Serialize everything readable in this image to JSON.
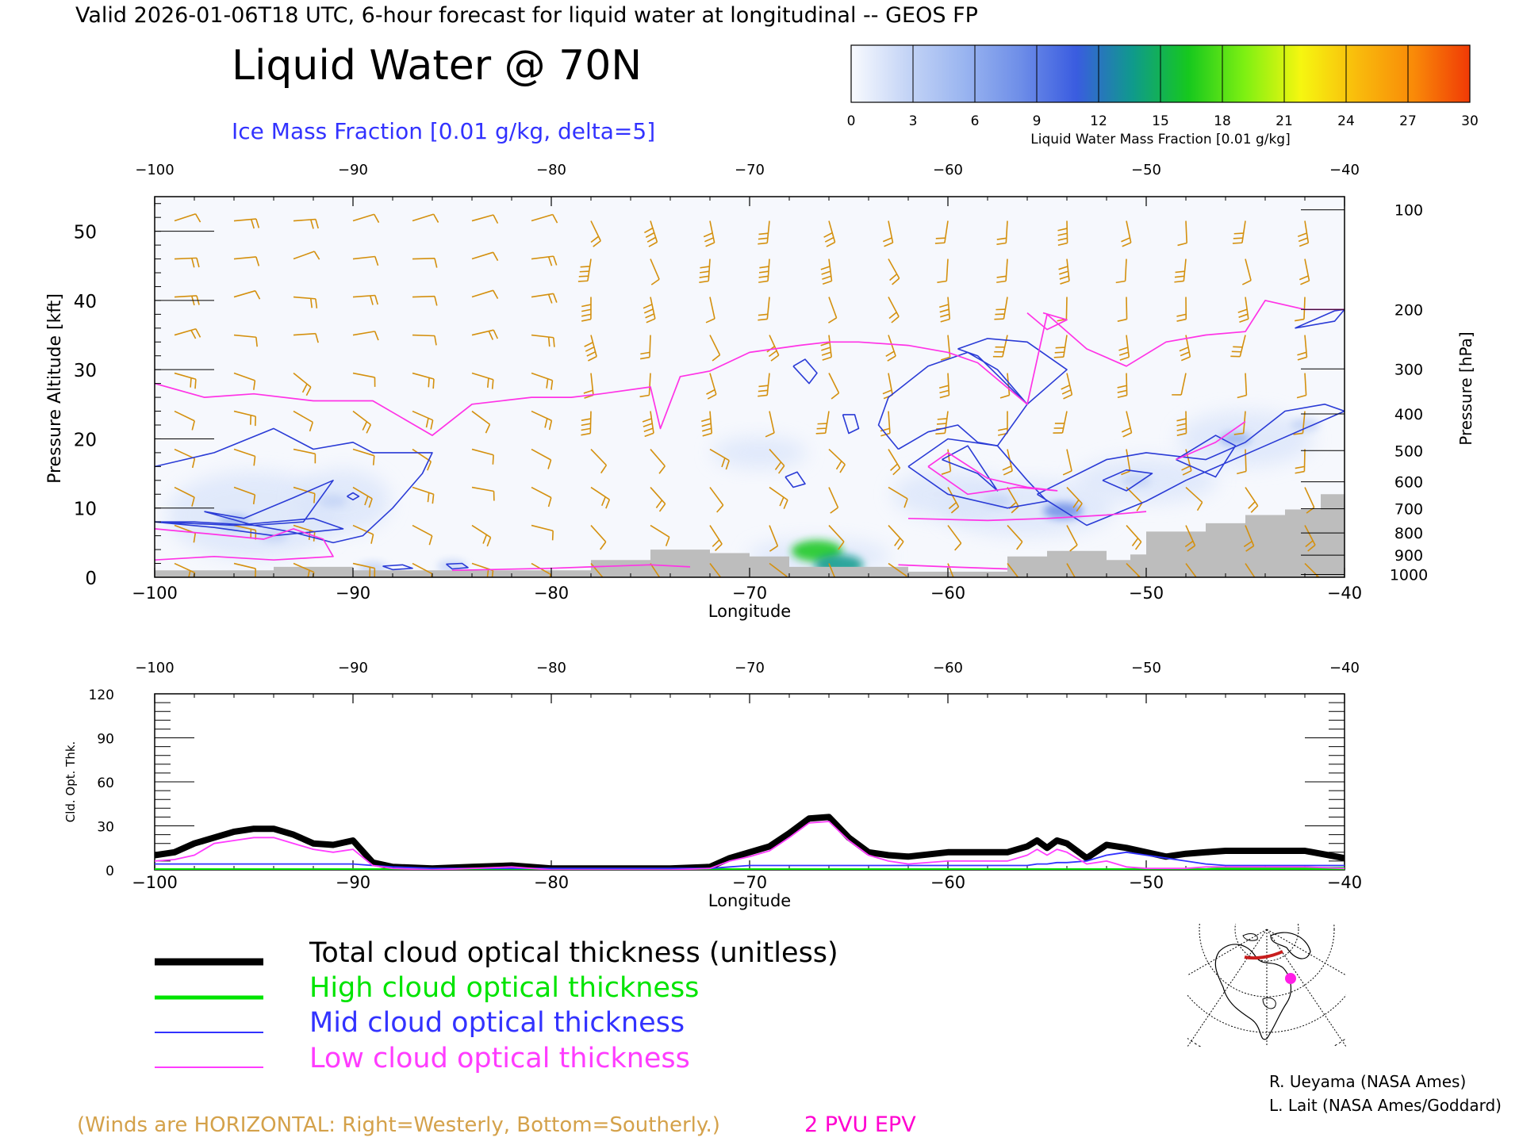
{
  "header": {
    "valid_line": "Valid 2026-01-06T18 UTC, 6-hour forecast for liquid water at longitudinal -- GEOS FP",
    "title": "Liquid Water @ 70N",
    "ice_label": "Ice Mass Fraction [0.01 g/kg, delta=5]"
  },
  "colorbar": {
    "label": "Liquid Water Mass Fraction [0.01 g/kg]",
    "ticks": [
      "0",
      "3",
      "6",
      "9",
      "12",
      "15",
      "18",
      "21",
      "24",
      "27",
      "30"
    ],
    "colors": [
      "#f8fafe",
      "#c4d4f6",
      "#9ab5f0",
      "#6e8ee8",
      "#3a5ce0",
      "#0f9a8c",
      "#16c81e",
      "#7ef012",
      "#f6f610",
      "#f9bb0c",
      "#f98a08",
      "#f03a06"
    ]
  },
  "chart_data": [
    {
      "type": "heatmap",
      "title": "Liquid Water @ 70N",
      "xlabel": "Longitude",
      "ylabel": "Pressure Altitude [kft]",
      "y2label": "Pressure [hPa]",
      "xlim": [
        -100,
        -40
      ],
      "ylim": [
        0,
        55
      ],
      "x_ticks": [
        "−100",
        "−90",
        "−80",
        "−70",
        "−60",
        "−50",
        "−40"
      ],
      "x_tick_values": [
        -100,
        -90,
        -80,
        -70,
        -60,
        -50,
        -40
      ],
      "y_ticks": [
        "0",
        "10",
        "20",
        "30",
        "40",
        "50"
      ],
      "y_tick_values": [
        0,
        10,
        20,
        30,
        40,
        50
      ],
      "pressure_ticks": [
        "100",
        "200",
        "300",
        "400",
        "500",
        "600",
        "700",
        "800",
        "900",
        "1000"
      ],
      "pressure_tick_kft": [
        53.1,
        38.7,
        30.1,
        23.6,
        18.3,
        13.8,
        9.9,
        6.4,
        3.2,
        0.4
      ],
      "terrain": {
        "x": [
          -100,
          -94,
          -94,
          -90,
          -90,
          -78,
          -78,
          -75,
          -75,
          -72,
          -72,
          -70,
          -70,
          -68,
          -68,
          -62,
          -62,
          -57,
          -57,
          -55,
          -55,
          -52,
          -52,
          -50.8,
          -50.8,
          -50,
          -50,
          -47,
          -47,
          -45,
          -45,
          -43,
          -43,
          -41.2,
          -41.2,
          -40
        ],
        "y": [
          1,
          1,
          1.5,
          1.5,
          1,
          1,
          2.5,
          2.5,
          4,
          4,
          3.5,
          3.5,
          3,
          3,
          1.5,
          1.5,
          0.8,
          0.8,
          3,
          3,
          3.8,
          3.8,
          2.5,
          2.5,
          3.3,
          3.3,
          6.6,
          6.6,
          7.8,
          7.8,
          9,
          9,
          9.8,
          9.8,
          12,
          12
        ]
      },
      "liquid_water_blobs": [
        {
          "x": -96,
          "y": 8,
          "value": 5
        },
        {
          "x": -91,
          "y": 11,
          "value": 3
        },
        {
          "x": -94,
          "y": 6,
          "value": 4
        },
        {
          "x": -66.6,
          "y": 3.8,
          "value": 15
        },
        {
          "x": -65.5,
          "y": 1.8,
          "value": 14
        },
        {
          "x": -54.2,
          "y": 9.6,
          "value": 9
        },
        {
          "x": -57.5,
          "y": 11,
          "value": 4
        },
        {
          "x": -50.5,
          "y": 14,
          "value": 4
        },
        {
          "x": -45.5,
          "y": 20,
          "value": 5
        },
        {
          "x": -42,
          "y": 22,
          "value": 4
        },
        {
          "x": -89,
          "y": 1.3,
          "value": 4
        },
        {
          "x": -85,
          "y": 1.6,
          "value": 4
        }
      ],
      "ice_contours": [
        {
          "x": [
            -100,
            -97,
            -94,
            -92,
            -90,
            -89,
            -86,
            -86.5,
            -88,
            -89.5,
            -91,
            -93,
            -95,
            -98,
            -100
          ],
          "y": [
            16,
            18,
            21.5,
            18.5,
            19.5,
            18,
            18,
            15,
            10,
            6,
            5,
            6.5,
            7.5,
            8,
            8
          ]
        },
        {
          "x": [
            -97.5,
            -95.5,
            -93,
            -91,
            -92.5,
            -95,
            -97.5
          ],
          "y": [
            9.5,
            8.5,
            11.5,
            14,
            8,
            7.5,
            9.5
          ]
        },
        {
          "x": [
            -90.3,
            -90,
            -89.7,
            -90,
            -90.3
          ],
          "y": [
            11.7,
            12.2,
            11.7,
            11.2,
            11.7
          ]
        },
        {
          "x": [
            -67.8,
            -67.2,
            -66.6,
            -67,
            -67.8
          ],
          "y": [
            30.5,
            31.5,
            29.5,
            28,
            30.5
          ]
        },
        {
          "x": [
            -65.3,
            -64.7,
            -64.5,
            -65,
            -65.3
          ],
          "y": [
            23.5,
            23.5,
            21.5,
            20.8,
            23.5
          ]
        },
        {
          "x": [
            -68.2,
            -67.6,
            -67.2,
            -67.8,
            -68.2
          ],
          "y": [
            14.5,
            15.2,
            13.5,
            13,
            14.5
          ]
        },
        {
          "x": [
            -62.5,
            -61,
            -59.5,
            -58.5,
            -57.5,
            -56,
            -57.5,
            -59,
            -61,
            -63,
            -63.5,
            -62.5
          ],
          "y": [
            18.5,
            21,
            22,
            19.5,
            19,
            25,
            30,
            32.5,
            30.5,
            26,
            22,
            18.5
          ]
        },
        {
          "x": [
            -59.5,
            -58,
            -56,
            -54,
            -56,
            -58.5,
            -59.5
          ],
          "y": [
            33,
            34.5,
            34,
            30,
            25,
            32,
            33
          ]
        },
        {
          "x": [
            -62,
            -60,
            -57.5,
            -56,
            -55,
            -57,
            -60,
            -62
          ],
          "y": [
            16,
            20,
            19,
            14,
            11,
            10,
            12,
            16
          ]
        },
        {
          "x": [
            -60.3,
            -59,
            -57.5,
            -58.5,
            -60.3
          ],
          "y": [
            17,
            19,
            12.5,
            15,
            17
          ]
        },
        {
          "x": [
            -55.5,
            -52,
            -50,
            -47,
            -45,
            -43,
            -41,
            -40,
            -44,
            -48,
            -50,
            -53,
            -55.5
          ],
          "y": [
            12,
            17,
            18,
            17,
            19.5,
            24,
            25,
            24,
            19,
            14,
            11,
            7.5,
            12
          ]
        },
        {
          "x": [
            -52.2,
            -51,
            -49.7,
            -51,
            -52.2
          ],
          "y": [
            14,
            15.5,
            15,
            12.5,
            14
          ]
        },
        {
          "x": [
            -48.5,
            -46.5,
            -45.5,
            -46.5,
            -48.5
          ],
          "y": [
            17,
            20.5,
            19,
            14.5,
            17
          ]
        },
        {
          "x": [
            -100,
            -96,
            -92,
            -90.5,
            -94,
            -97,
            -100
          ],
          "y": [
            8,
            7.5,
            8.5,
            7,
            6,
            7.2,
            8
          ]
        },
        {
          "x": [
            -88.5,
            -87.5,
            -87,
            -88,
            -88.5
          ],
          "y": [
            1.6,
            1.8,
            1.3,
            1.1,
            1.6
          ]
        },
        {
          "x": [
            -85.3,
            -84.5,
            -84.2,
            -85,
            -85.3
          ],
          "y": [
            1.9,
            2,
            1.4,
            1.2,
            1.9
          ]
        },
        {
          "x": [
            -42.5,
            -40.5,
            -40,
            -40.5,
            -42.5
          ],
          "y": [
            36,
            38.5,
            38.7,
            37,
            36
          ]
        }
      ],
      "epv_2pvu": [
        {
          "x": [
            -100,
            -97.5,
            -95,
            -92,
            -89,
            -86,
            -84,
            -81,
            -79,
            -77.5,
            -75,
            -74.5,
            -73.5,
            -72,
            -70,
            -67.5,
            -66,
            -64.5,
            -62,
            -60,
            -58.5,
            -56,
            -55,
            -53,
            -51,
            -49,
            -47,
            -45,
            -44,
            -42,
            -40
          ],
          "y": [
            28,
            26,
            26.5,
            25.5,
            25.5,
            20.5,
            25,
            26,
            26,
            26.5,
            27.5,
            21.5,
            29,
            29.8,
            32.5,
            33.5,
            34,
            34,
            33.5,
            32.5,
            31,
            25,
            38,
            33,
            30.5,
            34,
            35,
            35.5,
            40,
            38.7,
            38.7
          ]
        },
        {
          "x": [
            -55.2,
            -54,
            -55,
            -56
          ],
          "y": [
            38.2,
            37.2,
            35.8,
            38.2
          ]
        },
        {
          "x": [
            -100,
            -97,
            -94.5,
            -93,
            -91.5,
            -91,
            -94,
            -97,
            -100
          ],
          "y": [
            7,
            6.2,
            5.5,
            7,
            5.5,
            3,
            2.5,
            3,
            2.5
          ]
        },
        {
          "x": [
            -61,
            -60,
            -58,
            -56,
            -54.5,
            -56.5,
            -59,
            -61
          ],
          "y": [
            16,
            18,
            14.3,
            13,
            12.5,
            13,
            12,
            16
          ]
        },
        {
          "x": [
            -62,
            -58,
            -55,
            -52,
            -50
          ],
          "y": [
            8.5,
            8.2,
            8.5,
            9,
            9.5
          ]
        },
        {
          "x": [
            -48.5,
            -46.5,
            -45
          ],
          "y": [
            17,
            19.5,
            22.5
          ]
        },
        {
          "x": [
            -85,
            -80,
            -78,
            -75,
            -73
          ],
          "y": [
            1,
            1.3,
            1.5,
            1.8,
            1.5
          ]
        },
        {
          "x": [
            -62.5,
            -60,
            -57
          ],
          "y": [
            1.8,
            1.5,
            1.2
          ]
        }
      ],
      "wind_barb_grid": {
        "x_step": 3,
        "y_step": 5.5,
        "x_start": -99,
        "y_start": 2
      }
    },
    {
      "type": "line",
      "xlabel": "Longitude",
      "ylabel": "Cld. Opt. Thk.",
      "xlim": [
        -100,
        -40
      ],
      "ylim": [
        0,
        120
      ],
      "x_ticks": [
        "−100",
        "−90",
        "−80",
        "−70",
        "−60",
        "−50",
        "−40"
      ],
      "x_tick_values": [
        -100,
        -90,
        -80,
        -70,
        -60,
        -50,
        -40
      ],
      "y_ticks": [
        "0",
        "30",
        "60",
        "90",
        "120"
      ],
      "y_tick_values": [
        0,
        30,
        60,
        90,
        120
      ],
      "x": [
        -100,
        -99,
        -98,
        -97,
        -96,
        -95,
        -94,
        -93,
        -92,
        -91,
        -90,
        -89,
        -88,
        -86,
        -84,
        -82,
        -80,
        -78,
        -76,
        -74,
        -72,
        -71,
        -70,
        -69,
        -68,
        -67,
        -66,
        -65,
        -64,
        -63,
        -62,
        -60,
        -58,
        -57,
        -56,
        -55.5,
        -55,
        -54.5,
        -54,
        -53,
        -52,
        -51,
        -50,
        -49,
        -48,
        -47,
        -46,
        -44,
        -42,
        -40
      ],
      "series": [
        {
          "name": "Total cloud optical thickness (unitless)",
          "color": "#000000",
          "values": [
            10,
            12,
            18,
            22,
            26,
            28,
            28,
            24,
            18,
            17,
            20,
            5,
            2,
            1,
            2,
            3,
            1,
            1,
            1,
            1,
            2,
            8,
            12,
            16,
            25,
            35,
            36,
            22,
            12,
            10,
            9,
            12,
            12,
            12,
            16,
            20,
            15,
            20,
            18,
            8,
            17,
            15,
            12,
            9,
            11,
            12,
            13,
            13,
            13,
            8
          ]
        },
        {
          "name": "High cloud optical thickness",
          "color": "#00e400",
          "values": [
            0,
            0,
            0,
            0,
            0,
            0,
            0,
            0,
            0,
            0,
            0,
            0,
            0,
            0,
            0,
            0,
            0,
            0,
            0,
            0,
            0,
            0,
            0,
            0,
            0,
            0,
            0,
            0,
            0,
            0,
            0,
            0,
            0,
            0,
            0,
            0,
            0,
            0,
            0,
            0,
            0,
            0,
            0,
            0,
            0,
            0,
            1,
            1,
            1,
            1
          ]
        },
        {
          "name": "Mid cloud optical thickness",
          "color": "#3232ff",
          "values": [
            4,
            4,
            4,
            4,
            4,
            4,
            4,
            4,
            4,
            4,
            4,
            3,
            2,
            1,
            1,
            1,
            1,
            1,
            1,
            1,
            1,
            2,
            3,
            3,
            3,
            3,
            3,
            3,
            3,
            3,
            3,
            3,
            3,
            3,
            3,
            4,
            4,
            5,
            5,
            6,
            10,
            12,
            10,
            8,
            6,
            4,
            3,
            3,
            3,
            3
          ]
        },
        {
          "name": "Low cloud optical thickness",
          "color": "#ff3cff",
          "values": [
            6,
            7,
            10,
            18,
            20,
            22,
            22,
            18,
            14,
            12,
            14,
            3,
            1,
            0,
            1,
            2,
            0,
            0,
            0,
            0,
            1,
            6,
            9,
            13,
            22,
            32,
            33,
            20,
            10,
            6,
            4,
            6,
            6,
            6,
            10,
            14,
            10,
            14,
            12,
            4,
            6,
            2,
            1,
            1,
            1,
            2,
            2,
            2,
            2,
            1
          ]
        }
      ]
    }
  ],
  "legend": [
    {
      "label": "Total cloud optical thickness (unitless)",
      "color": "#000000",
      "text_color": "#000000"
    },
    {
      "label": "High cloud optical thickness",
      "color": "#00e400",
      "text_color": "#00e400"
    },
    {
      "label": "Mid cloud optical thickness",
      "color": "#3232ff",
      "text_color": "#3232ff"
    },
    {
      "label": "Low cloud optical thickness",
      "color": "#ff3cff",
      "text_color": "#ff3cff"
    }
  ],
  "footer": {
    "winds_note": "(Winds are HORIZONTAL: Right=Westerly, Bottom=Southerly.)",
    "epv_label": "2 PVU EPV",
    "credit_1": "R. Ueyama (NASA Ames)",
    "credit_2": "L. Lait (NASA Ames/Goddard)"
  },
  "colors": {
    "ice_contour": "#2a3bd6",
    "epv": "#ff33e6",
    "wind_barb": "#d4900e",
    "terrain": "#bdbdbd",
    "winds_note": "#d4a14a",
    "epv_label": "#ff00d0"
  },
  "map_inset": {
    "marker": "magenta-dot",
    "track": "red-line-70N"
  }
}
